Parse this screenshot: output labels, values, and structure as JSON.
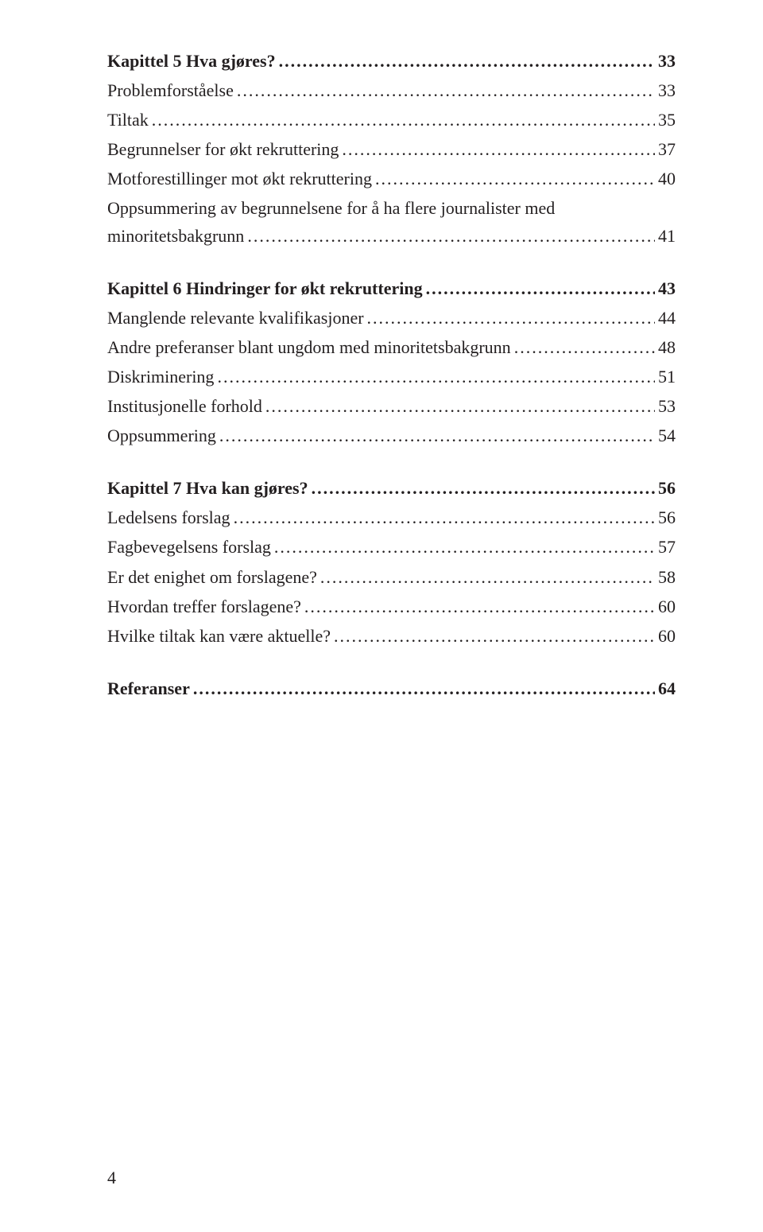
{
  "entries": [
    {
      "label": "Kapittel 5 Hva gjøres?",
      "page": "33",
      "bold": true,
      "spaced": false
    },
    {
      "label": "Problemforståelse",
      "page": "33",
      "bold": false,
      "spaced": false
    },
    {
      "label": "Tiltak",
      "page": "35",
      "bold": false,
      "spaced": false
    },
    {
      "label": "Begrunnelser for økt rekruttering",
      "page": "37",
      "bold": false,
      "spaced": false
    },
    {
      "label": "Motforestillinger mot økt rekruttering",
      "page": "40",
      "bold": false,
      "spaced": false
    },
    {
      "label": "Oppsummering av begrunnelsene for å ha flere journalister med minoritetsbakgrunn",
      "page": "41",
      "bold": false,
      "spaced": false
    },
    {
      "label": "Kapittel 6 Hindringer for økt rekruttering",
      "page": "43",
      "bold": true,
      "spaced": true
    },
    {
      "label": "Manglende relevante kvalifikasjoner",
      "page": "44",
      "bold": false,
      "spaced": false
    },
    {
      "label": "Andre preferanser blant ungdom med minoritetsbakgrunn",
      "page": "48",
      "bold": false,
      "spaced": false
    },
    {
      "label": "Diskriminering",
      "page": "51",
      "bold": false,
      "spaced": false
    },
    {
      "label": "Institusjonelle forhold",
      "page": "53",
      "bold": false,
      "spaced": false
    },
    {
      "label": "Oppsummering",
      "page": "54",
      "bold": false,
      "spaced": false
    },
    {
      "label": "Kapittel 7 Hva kan gjøres?",
      "page": "56",
      "bold": true,
      "spaced": true
    },
    {
      "label": "Ledelsens forslag",
      "page": "56",
      "bold": false,
      "spaced": false
    },
    {
      "label": "Fagbevegelsens forslag",
      "page": "57",
      "bold": false,
      "spaced": false
    },
    {
      "label": "Er det enighet om forslagene?",
      "page": "58",
      "bold": false,
      "spaced": false
    },
    {
      "label": "Hvordan treffer forslagene?",
      "page": "60",
      "bold": false,
      "spaced": false
    },
    {
      "label": "Hvilke tiltak kan være aktuelle?",
      "page": "60",
      "bold": false,
      "spaced": false
    },
    {
      "label": "Referanser",
      "page": "64",
      "bold": true,
      "spaced": true
    }
  ],
  "page_number": "4"
}
